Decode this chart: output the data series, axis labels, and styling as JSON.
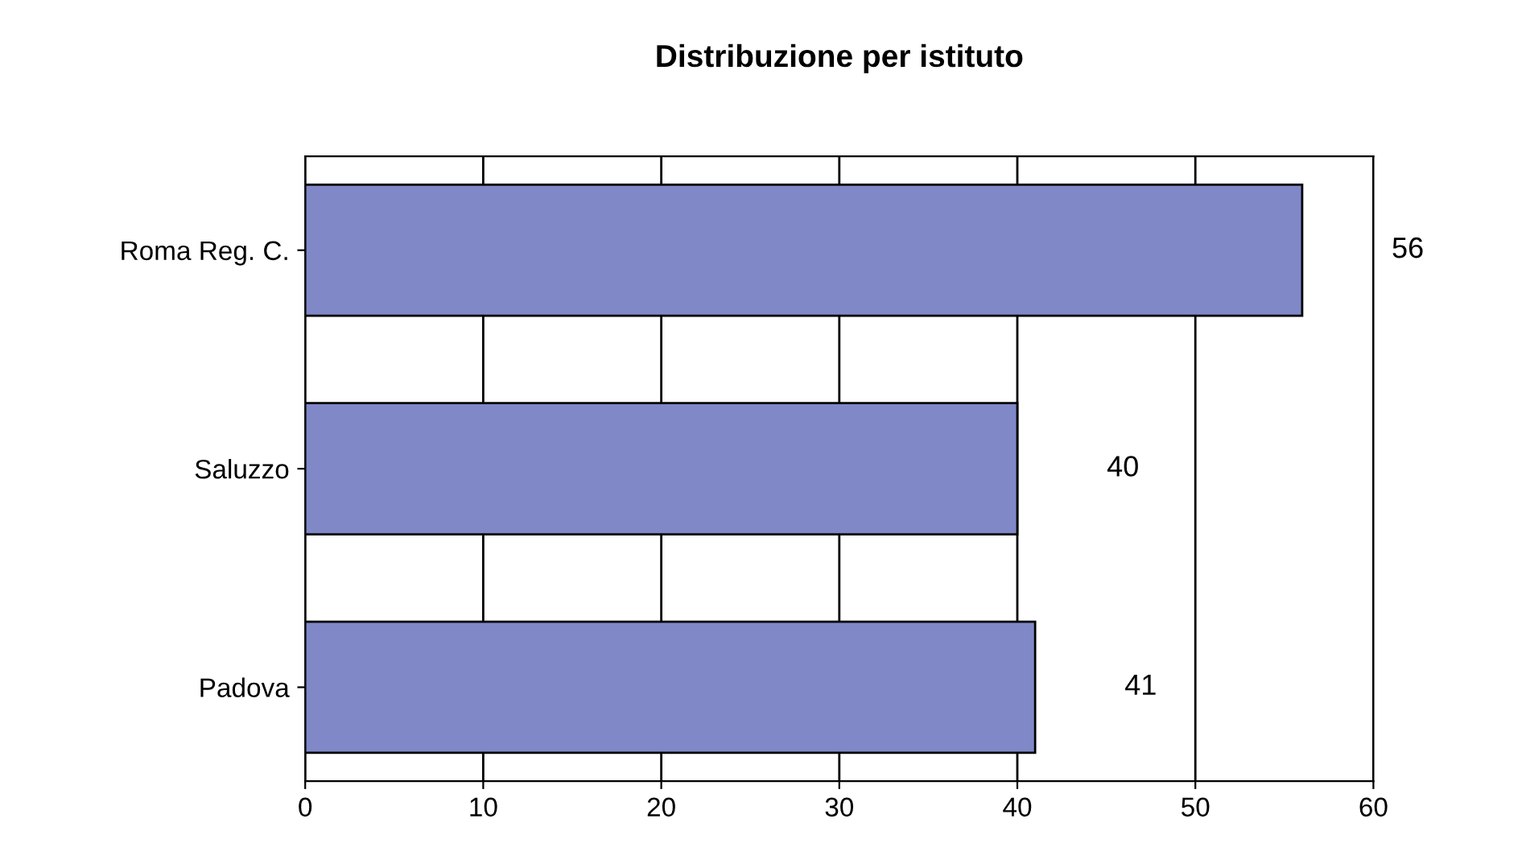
{
  "chart_data": {
    "type": "bar",
    "orientation": "horizontal",
    "title": "Distribuzione per istituto",
    "categories": [
      "Roma Reg. C.",
      "Saluzzo",
      "Padova"
    ],
    "values": [
      56,
      40,
      41
    ],
    "color": "#8088c8",
    "data_labels": true,
    "xlim": [
      0,
      60
    ],
    "xticks": [
      0,
      10,
      20,
      30,
      40,
      50,
      60
    ],
    "grid": "x"
  }
}
